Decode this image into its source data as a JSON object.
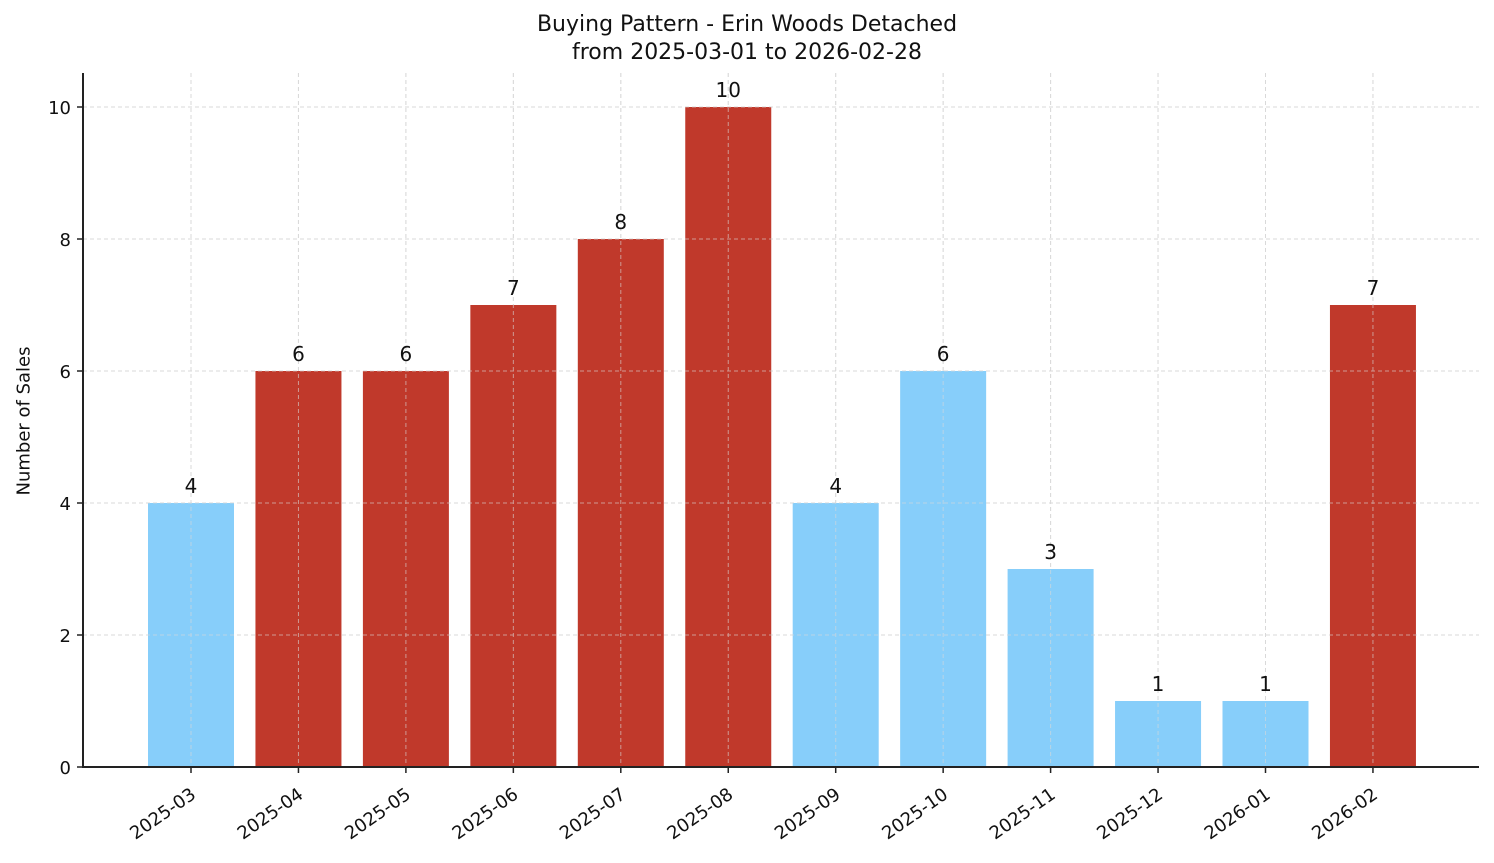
{
  "chart_data": {
    "type": "bar",
    "title": "Buying Pattern - Erin Woods Detached",
    "subtitle": "from 2025-03-01 to 2026-02-28",
    "xlabel": "",
    "ylabel": "Number of Sales",
    "ylim": [
      0,
      10.5
    ],
    "yticks": [
      0,
      2,
      4,
      6,
      8,
      10
    ],
    "grid": true,
    "legend": null,
    "categories": [
      "2025-03",
      "2025-04",
      "2025-05",
      "2025-06",
      "2025-07",
      "2025-08",
      "2025-09",
      "2025-10",
      "2025-11",
      "2025-12",
      "2026-01",
      "2026-02"
    ],
    "values": [
      4,
      6,
      6,
      7,
      8,
      10,
      4,
      6,
      3,
      1,
      1,
      7
    ],
    "bar_colors": [
      "#87CEFA",
      "#C0392B",
      "#C0392B",
      "#C0392B",
      "#C0392B",
      "#C0392B",
      "#87CEFA",
      "#87CEFA",
      "#87CEFA",
      "#87CEFA",
      "#87CEFA",
      "#C0392B"
    ],
    "data_labels": [
      "4",
      "6",
      "6",
      "7",
      "8",
      "10",
      "4",
      "6",
      "3",
      "1",
      "1",
      "7"
    ],
    "colors": {
      "high": "#C0392B",
      "low": "#87CEFA",
      "axis": "#222222",
      "grid": "#d9d9d9"
    }
  }
}
